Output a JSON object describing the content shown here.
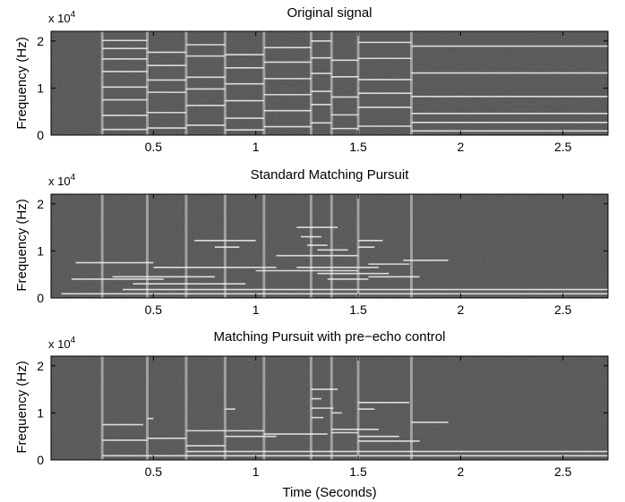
{
  "chart_data": [
    {
      "type": "heatmap",
      "title": "Original signal",
      "xlabel": "",
      "ylabel": "Frequency (Hz)",
      "y_multiplier": "x 10",
      "y_multiplier_exp": "4",
      "xlim": [
        0,
        2.72
      ],
      "ylim": [
        0,
        22050
      ],
      "xticks": [
        0.5,
        1,
        1.5,
        2,
        2.5
      ],
      "xtick_labels": [
        "0.5",
        "1",
        "1.5",
        "2",
        "2.5"
      ],
      "yticks": [
        0,
        10000,
        20000
      ],
      "ytick_labels": [
        "0",
        "1",
        "2"
      ],
      "onsets": [
        0.25,
        0.47,
        0.66,
        0.85,
        1.04,
        1.27,
        1.37,
        1.5,
        1.76
      ],
      "events": [
        {
          "t0": 0.25,
          "t1": 0.47,
          "f": [
            1200,
            4200,
            7500,
            10200,
            13500,
            16200,
            18400,
            20100
          ]
        },
        {
          "t0": 0.47,
          "t1": 0.66,
          "f": [
            1500,
            4800,
            9100,
            11700,
            14800,
            17600
          ]
        },
        {
          "t0": 0.66,
          "t1": 0.85,
          "f": [
            2100,
            6300,
            9800,
            12300,
            16800,
            19200
          ]
        },
        {
          "t0": 0.85,
          "t1": 1.04,
          "f": [
            1100,
            3600,
            7300,
            10900,
            14300,
            17100
          ]
        },
        {
          "t0": 1.04,
          "t1": 1.27,
          "f": [
            1800,
            5200,
            8600,
            12000,
            15500,
            18600
          ]
        },
        {
          "t0": 1.27,
          "t1": 1.37,
          "f": [
            2600,
            6500,
            9300,
            13100,
            16400,
            20000
          ]
        },
        {
          "t0": 1.37,
          "t1": 1.5,
          "f": [
            1400,
            4300,
            8100,
            12400,
            15900
          ]
        },
        {
          "t0": 1.5,
          "t1": 1.76,
          "f": [
            1900,
            5900,
            8900,
            11800,
            16300,
            19700
          ]
        },
        {
          "t0": 1.76,
          "t1": 2.72,
          "f": [
            900,
            2700,
            4600,
            8200,
            13200,
            18900
          ]
        }
      ]
    },
    {
      "type": "heatmap",
      "title": "Standard Matching Pursuit",
      "xlabel": "",
      "ylabel": "Frequency (Hz)",
      "y_multiplier": "x 10",
      "y_multiplier_exp": "4",
      "xlim": [
        0,
        2.72
      ],
      "ylim": [
        0,
        22050
      ],
      "xticks": [
        0.5,
        1,
        1.5,
        2,
        2.5
      ],
      "xtick_labels": [
        "0.5",
        "1",
        "1.5",
        "2",
        "2.5"
      ],
      "yticks": [
        0,
        10000,
        20000
      ],
      "ytick_labels": [
        "0",
        "1",
        "2"
      ],
      "onsets": [
        0.25,
        0.47,
        0.66,
        0.85,
        1.04,
        1.27,
        1.37,
        1.5,
        1.76
      ],
      "events": [
        {
          "t0": 0.12,
          "t1": 0.5,
          "f": [
            7500
          ]
        },
        {
          "t0": 0.1,
          "t1": 0.55,
          "f": [
            4000
          ]
        },
        {
          "t0": 0.3,
          "t1": 0.8,
          "f": [
            4500
          ]
        },
        {
          "t0": 0.5,
          "t1": 1.1,
          "f": [
            6500
          ]
        },
        {
          "t0": 0.7,
          "t1": 1.0,
          "f": [
            12200
          ]
        },
        {
          "t0": 0.8,
          "t1": 0.92,
          "f": [
            10800
          ]
        },
        {
          "t0": 0.4,
          "t1": 0.95,
          "f": [
            3000
          ]
        },
        {
          "t0": 1.2,
          "t1": 1.4,
          "f": [
            15000
          ]
        },
        {
          "t0": 1.22,
          "t1": 1.32,
          "f": [
            13000
          ]
        },
        {
          "t0": 1.1,
          "t1": 1.5,
          "f": [
            9000
          ]
        },
        {
          "t0": 1.3,
          "t1": 1.45,
          "f": [
            10200
          ]
        },
        {
          "t0": 1.25,
          "t1": 1.35,
          "f": [
            11200
          ]
        },
        {
          "t0": 1.2,
          "t1": 1.6,
          "f": [
            6500
          ]
        },
        {
          "t0": 1.0,
          "t1": 1.5,
          "f": [
            5800
          ]
        },
        {
          "t0": 1.3,
          "t1": 1.65,
          "f": [
            5200
          ]
        },
        {
          "t0": 1.35,
          "t1": 1.55,
          "f": [
            4000
          ]
        },
        {
          "t0": 1.5,
          "t1": 1.62,
          "f": [
            12200
          ]
        },
        {
          "t0": 1.5,
          "t1": 1.58,
          "f": [
            10800
          ]
        },
        {
          "t0": 1.55,
          "t1": 1.75,
          "f": [
            7200
          ]
        },
        {
          "t0": 1.55,
          "t1": 1.8,
          "f": [
            4500
          ]
        },
        {
          "t0": 1.72,
          "t1": 1.94,
          "f": [
            8000
          ]
        },
        {
          "t0": 0.05,
          "t1": 2.72,
          "f": [
            900
          ]
        },
        {
          "t0": 0.35,
          "t1": 2.72,
          "f": [
            1800
          ]
        }
      ]
    },
    {
      "type": "heatmap",
      "title": "Matching Pursuit with pre−echo control",
      "xlabel": "Time (Seconds)",
      "ylabel": "Frequency (Hz)",
      "y_multiplier": "x 10",
      "y_multiplier_exp": "4",
      "xlim": [
        0,
        2.72
      ],
      "ylim": [
        0,
        22050
      ],
      "xticks": [
        0.5,
        1,
        1.5,
        2,
        2.5
      ],
      "xtick_labels": [
        "0.5",
        "1",
        "1.5",
        "2",
        "2.5"
      ],
      "yticks": [
        0,
        10000,
        20000
      ],
      "ytick_labels": [
        "0",
        "1",
        "2"
      ],
      "onsets": [
        0.25,
        0.47,
        0.66,
        0.85,
        1.04,
        1.27,
        1.37,
        1.5,
        1.76
      ],
      "events": [
        {
          "t0": 0.25,
          "t1": 0.45,
          "f": [
            7500
          ]
        },
        {
          "t0": 0.47,
          "t1": 0.5,
          "f": [
            8800
          ]
        },
        {
          "t0": 0.25,
          "t1": 0.47,
          "f": [
            4200
          ]
        },
        {
          "t0": 0.47,
          "t1": 0.66,
          "f": [
            4600
          ]
        },
        {
          "t0": 0.66,
          "t1": 1.04,
          "f": [
            6200
          ]
        },
        {
          "t0": 0.66,
          "t1": 0.85,
          "f": [
            3000
          ]
        },
        {
          "t0": 0.85,
          "t1": 0.9,
          "f": [
            10800
          ]
        },
        {
          "t0": 0.85,
          "t1": 1.1,
          "f": [
            5000
          ]
        },
        {
          "t0": 1.04,
          "t1": 1.35,
          "f": [
            5500
          ]
        },
        {
          "t0": 1.27,
          "t1": 1.4,
          "f": [
            15000
          ]
        },
        {
          "t0": 1.27,
          "t1": 1.32,
          "f": [
            13000
          ]
        },
        {
          "t0": 1.27,
          "t1": 1.33,
          "f": [
            9000
          ]
        },
        {
          "t0": 1.27,
          "t1": 1.38,
          "f": [
            11000
          ]
        },
        {
          "t0": 1.37,
          "t1": 1.42,
          "f": [
            10000
          ]
        },
        {
          "t0": 1.37,
          "t1": 1.6,
          "f": [
            6500
          ]
        },
        {
          "t0": 1.37,
          "t1": 1.5,
          "f": [
            5800
          ]
        },
        {
          "t0": 1.5,
          "t1": 1.75,
          "f": [
            12200
          ]
        },
        {
          "t0": 1.5,
          "t1": 1.58,
          "f": [
            10800
          ]
        },
        {
          "t0": 1.5,
          "t1": 1.7,
          "f": [
            5000
          ]
        },
        {
          "t0": 1.5,
          "t1": 1.8,
          "f": [
            4000
          ]
        },
        {
          "t0": 1.76,
          "t1": 1.94,
          "f": [
            8000
          ]
        },
        {
          "t0": 0.25,
          "t1": 2.72,
          "f": [
            900
          ]
        },
        {
          "t0": 0.66,
          "t1": 2.72,
          "f": [
            1800
          ]
        }
      ]
    }
  ]
}
